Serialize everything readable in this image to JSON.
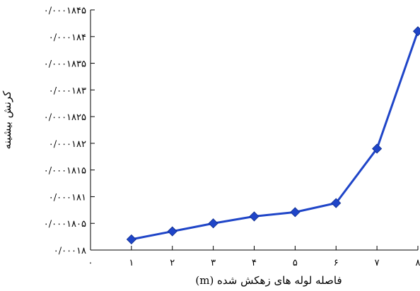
{
  "chart_data": {
    "type": "line",
    "xlabel": "فاصله لوله های زهکش شده (m)",
    "ylabel": "کرنش بیشینه",
    "x": [
      1,
      2,
      3,
      4,
      5,
      6,
      7,
      8
    ],
    "y": [
      0.0001802,
      0.00018035,
      0.0001805,
      0.00018063,
      0.00018071,
      0.00018088,
      0.0001819,
      0.0001841
    ],
    "xlim": [
      0,
      8
    ],
    "ylim": [
      0.00018,
      0.0001845
    ],
    "x_tick_values": [
      0,
      1,
      2,
      3,
      4,
      5,
      6,
      7,
      8
    ],
    "x_tick_labels": [
      "۰",
      "۱",
      "۲",
      "۳",
      "۴",
      "۵",
      "۶",
      "۷",
      "۸"
    ],
    "y_tick_values": [
      0.00018,
      0.0001805,
      0.000181,
      0.0001815,
      0.000182,
      0.0001825,
      0.000183,
      0.0001835,
      0.000184,
      0.0001845
    ],
    "y_tick_labels": [
      "۰/۰۰۰۱۸",
      "۰/۰۰۰۱۸۰۵",
      "۰/۰۰۰۱۸۱",
      "۰/۰۰۰۱۸۱۵",
      "۰/۰۰۰۱۸۲",
      "۰/۰۰۰۱۸۲۵",
      "۰/۰۰۰۱۸۳",
      "۰/۰۰۰۱۸۳۵",
      "۰/۰۰۰۱۸۴",
      "۰/۰۰۰۱۸۴۵"
    ],
    "grid": false,
    "marker": "diamond",
    "line_color": "#1f45c8"
  }
}
